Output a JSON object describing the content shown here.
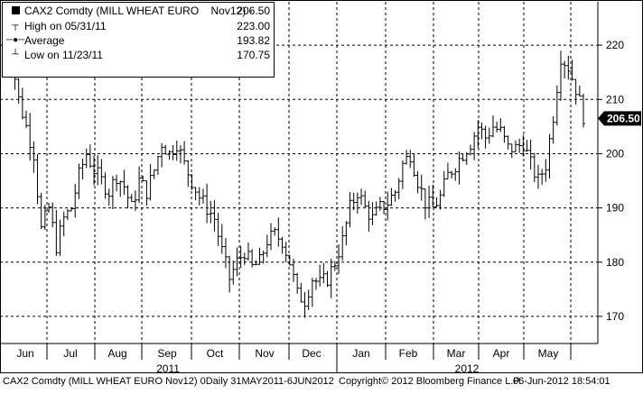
{
  "chart_data": {
    "type": "bar",
    "subtype": "ohlc",
    "ticker": "CAX2 Comdty (MILL WHEAT EURO",
    "contract": "Nov12) -",
    "last": 206.5,
    "last_label": "206.50",
    "legend": [
      {
        "label": "High on 05/31/11",
        "value": "223.00",
        "marker": "T"
      },
      {
        "label": "Average",
        "value": "193.82",
        "marker": "dot"
      },
      {
        "label": "Low on 11/23/11",
        "value": "170.75",
        "marker": "T"
      }
    ],
    "last_value_display": "206.50",
    "ylim": [
      165,
      228
    ],
    "yticks": [
      170,
      180,
      190,
      200,
      210,
      220
    ],
    "ytick_labels": [
      "170",
      "180",
      "190",
      "200",
      "210",
      "220"
    ],
    "months": [
      "Jun",
      "Jul",
      "Aug",
      "Sep",
      "Oct",
      "Nov",
      "Dec",
      "Jan",
      "Feb",
      "Mar",
      "Apr",
      "May"
    ],
    "years": [
      "2011",
      "2012"
    ],
    "grid": true,
    "legend_position": "top-left",
    "anchors": [
      [
        0,
        222
      ],
      [
        2,
        218
      ],
      [
        4,
        210
      ],
      [
        6,
        205
      ],
      [
        8,
        200
      ],
      [
        10,
        186
      ],
      [
        12,
        190
      ],
      [
        14,
        183
      ],
      [
        16,
        188
      ],
      [
        18,
        190
      ],
      [
        20,
        196
      ],
      [
        22,
        200
      ],
      [
        24,
        197
      ],
      [
        26,
        195
      ],
      [
        28,
        193
      ],
      [
        30,
        196
      ],
      [
        32,
        194
      ],
      [
        34,
        190
      ],
      [
        36,
        195
      ],
      [
        38,
        193
      ],
      [
        40,
        197
      ],
      [
        42,
        202
      ],
      [
        44,
        200
      ],
      [
        46,
        202
      ],
      [
        48,
        198
      ],
      [
        50,
        195
      ],
      [
        52,
        192
      ],
      [
        54,
        190
      ],
      [
        56,
        188
      ],
      [
        58,
        182
      ],
      [
        60,
        177
      ],
      [
        62,
        180
      ],
      [
        64,
        182
      ],
      [
        66,
        179
      ],
      [
        68,
        180
      ],
      [
        70,
        184
      ],
      [
        72,
        185
      ],
      [
        74,
        184
      ],
      [
        76,
        180
      ],
      [
        78,
        174
      ],
      [
        80,
        173
      ],
      [
        82,
        177
      ],
      [
        84,
        176
      ],
      [
        86,
        177
      ],
      [
        88,
        180
      ],
      [
        90,
        184
      ],
      [
        92,
        190
      ],
      [
        94,
        193
      ],
      [
        96,
        190
      ],
      [
        98,
        188
      ],
      [
        100,
        190
      ],
      [
        102,
        191
      ],
      [
        104,
        193
      ],
      [
        106,
        198
      ],
      [
        108,
        200
      ],
      [
        110,
        195
      ],
      [
        112,
        191
      ],
      [
        114,
        190
      ],
      [
        116,
        192
      ],
      [
        118,
        196
      ],
      [
        120,
        198
      ],
      [
        122,
        200
      ],
      [
        124,
        202
      ],
      [
        126,
        205
      ],
      [
        128,
        203
      ],
      [
        130,
        205
      ],
      [
        132,
        204
      ],
      [
        134,
        201
      ],
      [
        136,
        201
      ],
      [
        138,
        202
      ],
      [
        140,
        198
      ],
      [
        142,
        195
      ],
      [
        144,
        198
      ],
      [
        146,
        207
      ],
      [
        148,
        218
      ],
      [
        150,
        216
      ],
      [
        152,
        212
      ],
      [
        154,
        207
      ]
    ],
    "n_bars": 155
  },
  "footer": {
    "left": "CAX2 Comdty (MILL WHEAT EURO   Nov12) 0Daily 31MAY2011-6JUN2012",
    "mid": "Copyright© 2012 Bloomberg Finance L.P.",
    "right": "06-Jun-2012 18:54:01"
  }
}
